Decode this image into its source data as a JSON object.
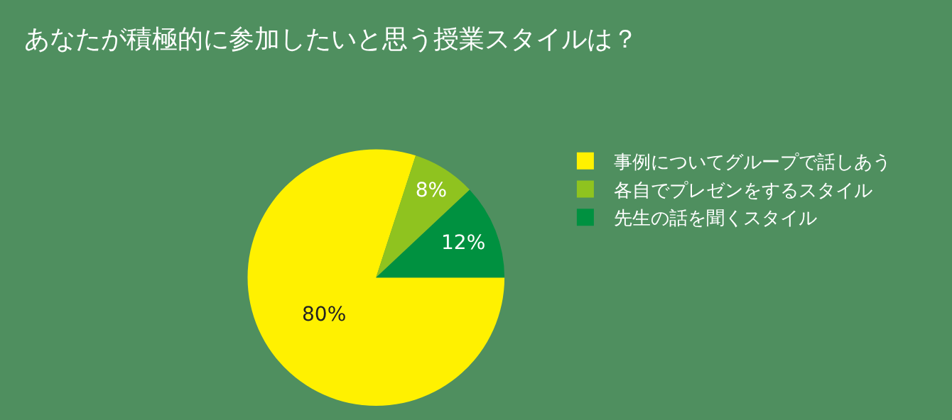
{
  "chart_data": {
    "type": "pie",
    "title": "あなたが積極的に参加したいと思う授業スタイルは？",
    "categories": [
      "事例についてグループで話しあう",
      "各自でプレゼンをするスタイル",
      "先生の話を聞くスタイル"
    ],
    "values": [
      80,
      8,
      12
    ],
    "colors": [
      "#fff100",
      "#8fc31f",
      "#009140"
    ],
    "value_labels": [
      "80%",
      "8%",
      "12%"
    ],
    "legend": "right"
  }
}
